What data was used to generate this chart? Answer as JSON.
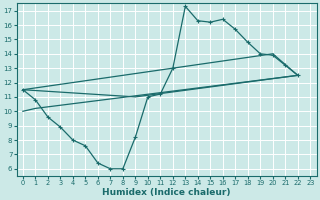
{
  "xlabel": "Humidex (Indice chaleur)",
  "bg_color": "#cce9e7",
  "line_color": "#1a6b6b",
  "grid_color": "#ffffff",
  "xlim": [
    -0.5,
    23.5
  ],
  "ylim": [
    5.5,
    17.5
  ],
  "xticks": [
    0,
    1,
    2,
    3,
    4,
    5,
    6,
    7,
    8,
    9,
    10,
    11,
    12,
    13,
    14,
    15,
    16,
    17,
    18,
    19,
    20,
    21,
    22,
    23
  ],
  "yticks": [
    6,
    7,
    8,
    9,
    10,
    11,
    12,
    13,
    14,
    15,
    16,
    17
  ],
  "line1_x": [
    0,
    1,
    2,
    3,
    4,
    5,
    6,
    7,
    8,
    9,
    10,
    11,
    12,
    13,
    14,
    15,
    16,
    17,
    18,
    19,
    20,
    21,
    22
  ],
  "line1_y": [
    11.5,
    10.8,
    9.6,
    8.9,
    8.0,
    7.6,
    6.4,
    6.0,
    6.0,
    8.2,
    11.0,
    11.2,
    13.0,
    17.3,
    16.3,
    16.2,
    16.4,
    15.7,
    14.8,
    14.0,
    13.9,
    13.2,
    12.5
  ],
  "line2_x": [
    0,
    9,
    22
  ],
  "line2_y": [
    11.5,
    11.0,
    12.5
  ],
  "line3_x": [
    0,
    1,
    22
  ],
  "line3_y": [
    10.0,
    10.2,
    12.5
  ],
  "line4_x": [
    0,
    20,
    22
  ],
  "line4_y": [
    11.5,
    14.0,
    12.5
  ]
}
